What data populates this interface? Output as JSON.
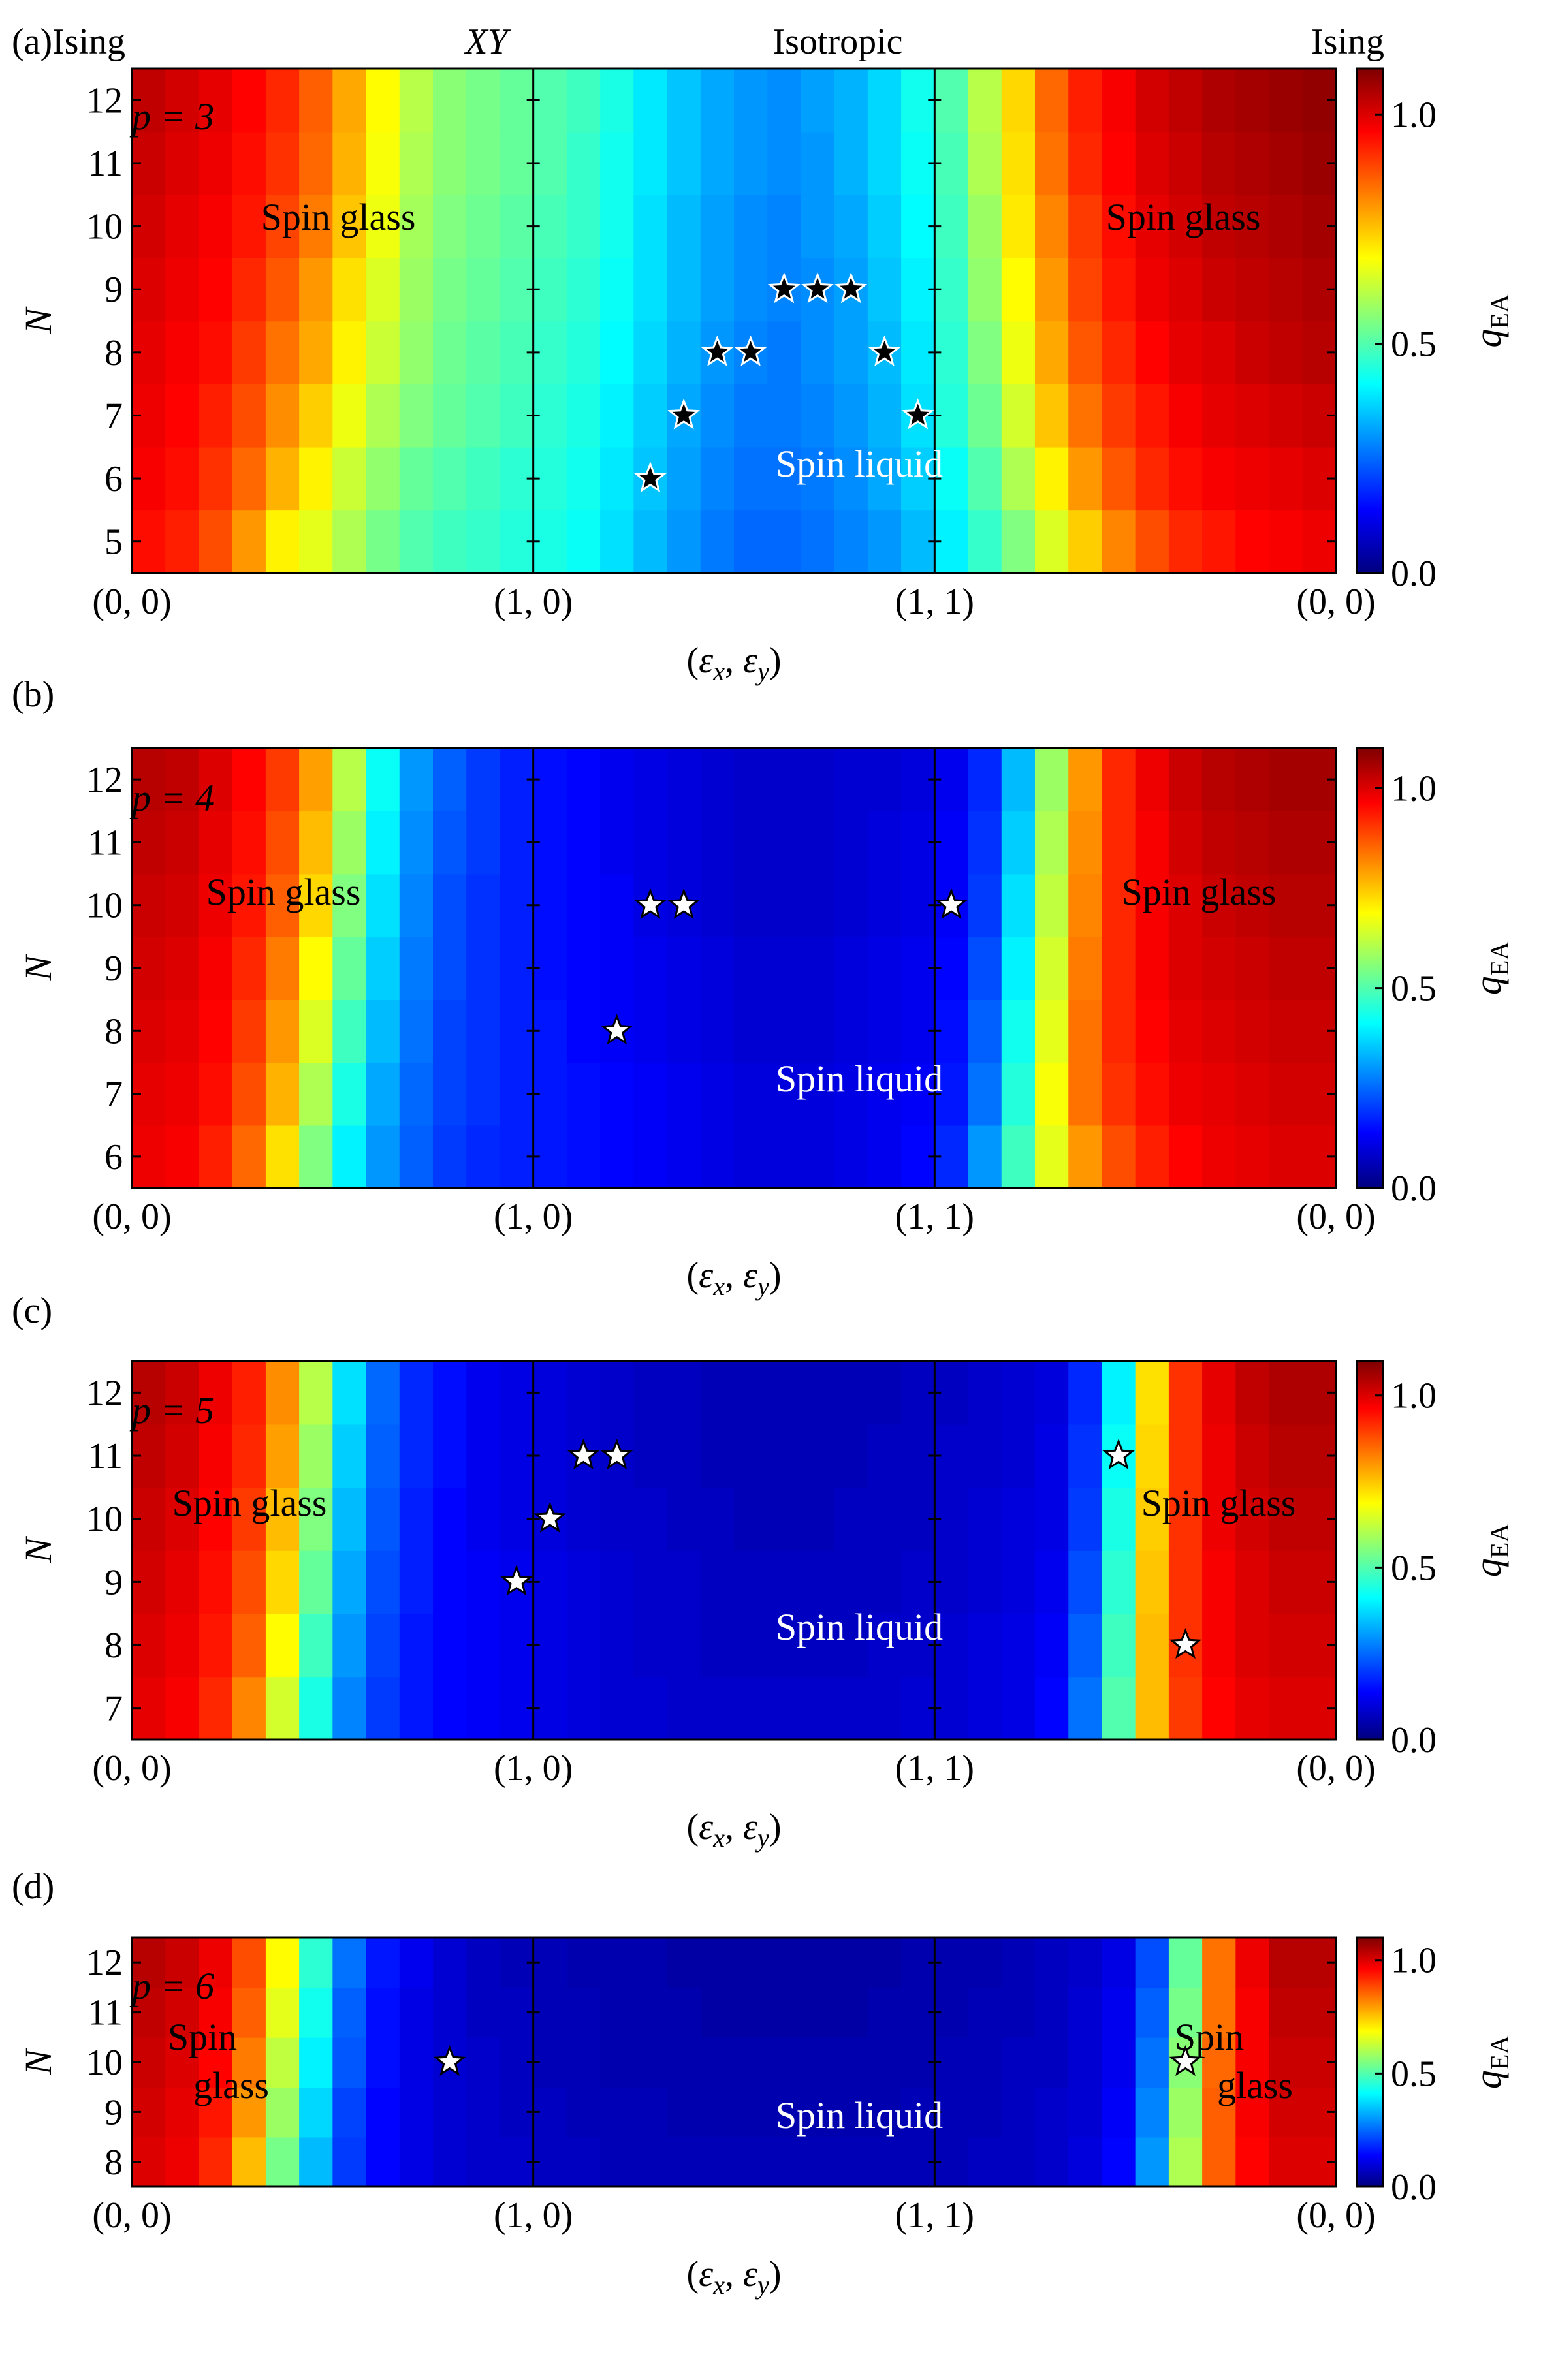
{
  "figure": {
    "colorbar": {
      "label_main": "q",
      "label_sub": "EA",
      "ticks": [
        "0.0",
        "0.5",
        "1.0"
      ],
      "vmin": 0.0,
      "vmax": 1.1
    },
    "x_tick_labels": [
      "(0, 0)",
      "(1, 0)",
      "(1, 1)",
      "(0, 0)"
    ],
    "x_axis_label": {
      "lparen": "(",
      "e1": "ε",
      "s1": "x",
      "comma": ", ",
      "e2": "ε",
      "s2": "y",
      "rparen": ")"
    },
    "y_axis_label": "N",
    "top_labels": {
      "ising_left": "Ising",
      "xy": "XY",
      "isotropic": "Isotropic",
      "ising_right": "Ising"
    },
    "star_color": "#000000"
  },
  "chart_data": [
    {
      "type": "heatmap",
      "panel": "(a)",
      "p_label": "p = 3",
      "xlabel": "(εx, εy)",
      "ylabel": "N",
      "x_path": [
        "(0, 0)",
        "(1, 0)",
        "(1, 1)",
        "(0, 0)"
      ],
      "columns": 36,
      "N": [
        5,
        6,
        7,
        8,
        9,
        10,
        11,
        12
      ],
      "region_labels": [
        "Spin glass",
        "Spin glass",
        "Spin liquid"
      ],
      "values": [
        [
          0.95,
          0.93,
          0.88,
          0.8,
          0.7,
          0.66,
          0.6,
          0.54,
          0.5,
          0.48,
          0.47,
          0.45,
          0.44,
          0.42,
          0.38,
          0.34,
          0.3,
          0.27,
          0.25,
          0.25,
          0.26,
          0.28,
          0.3,
          0.34,
          0.4,
          0.47,
          0.55,
          0.65,
          0.74,
          0.82,
          0.88,
          0.92,
          0.94,
          0.96,
          0.97,
          0.98
        ],
        [
          0.97,
          0.95,
          0.91,
          0.85,
          0.77,
          0.7,
          0.63,
          0.57,
          0.52,
          0.5,
          0.48,
          0.46,
          0.45,
          0.43,
          0.39,
          0.35,
          0.31,
          0.28,
          0.26,
          0.26,
          0.27,
          0.29,
          0.32,
          0.36,
          0.42,
          0.5,
          0.6,
          0.7,
          0.8,
          0.87,
          0.92,
          0.95,
          0.97,
          0.98,
          0.99,
          1.0
        ],
        [
          0.98,
          0.96,
          0.93,
          0.88,
          0.81,
          0.74,
          0.67,
          0.6,
          0.55,
          0.52,
          0.5,
          0.48,
          0.46,
          0.44,
          0.4,
          0.36,
          0.32,
          0.29,
          0.27,
          0.27,
          0.28,
          0.3,
          0.33,
          0.38,
          0.45,
          0.53,
          0.64,
          0.75,
          0.84,
          0.9,
          0.94,
          0.97,
          0.99,
          1.0,
          1.01,
          1.02
        ],
        [
          0.99,
          0.97,
          0.95,
          0.9,
          0.84,
          0.78,
          0.7,
          0.63,
          0.57,
          0.53,
          0.51,
          0.49,
          0.47,
          0.45,
          0.41,
          0.37,
          0.33,
          0.3,
          0.28,
          0.27,
          0.29,
          0.31,
          0.34,
          0.39,
          0.46,
          0.55,
          0.67,
          0.78,
          0.87,
          0.92,
          0.96,
          0.99,
          1.0,
          1.02,
          1.03,
          1.04
        ],
        [
          1.0,
          0.98,
          0.96,
          0.92,
          0.87,
          0.8,
          0.72,
          0.65,
          0.58,
          0.54,
          0.52,
          0.5,
          0.48,
          0.46,
          0.42,
          0.38,
          0.34,
          0.31,
          0.29,
          0.28,
          0.29,
          0.31,
          0.35,
          0.4,
          0.47,
          0.57,
          0.69,
          0.8,
          0.89,
          0.94,
          0.98,
          1.0,
          1.02,
          1.03,
          1.04,
          1.05
        ],
        [
          1.01,
          0.99,
          0.97,
          0.94,
          0.89,
          0.83,
          0.75,
          0.67,
          0.59,
          0.55,
          0.53,
          0.51,
          0.49,
          0.47,
          0.43,
          0.38,
          0.34,
          0.31,
          0.29,
          0.28,
          0.3,
          0.32,
          0.36,
          0.41,
          0.48,
          0.58,
          0.71,
          0.82,
          0.9,
          0.95,
          0.99,
          1.01,
          1.03,
          1.04,
          1.05,
          1.06
        ],
        [
          1.02,
          1.0,
          0.98,
          0.95,
          0.91,
          0.85,
          0.77,
          0.68,
          0.6,
          0.56,
          0.54,
          0.52,
          0.5,
          0.47,
          0.43,
          0.39,
          0.35,
          0.32,
          0.3,
          0.29,
          0.3,
          0.33,
          0.37,
          0.42,
          0.49,
          0.6,
          0.72,
          0.84,
          0.92,
          0.96,
          1.0,
          1.02,
          1.04,
          1.05,
          1.06,
          1.07
        ],
        [
          1.03,
          1.01,
          0.99,
          0.96,
          0.92,
          0.86,
          0.78,
          0.69,
          0.61,
          0.56,
          0.54,
          0.52,
          0.5,
          0.48,
          0.44,
          0.39,
          0.35,
          0.32,
          0.3,
          0.29,
          0.31,
          0.33,
          0.37,
          0.43,
          0.5,
          0.61,
          0.73,
          0.85,
          0.93,
          0.97,
          1.01,
          1.03,
          1.05,
          1.06,
          1.07,
          1.08
        ]
      ],
      "stars": [
        [
          15.5,
          6
        ],
        [
          16.5,
          7
        ],
        [
          17.5,
          8
        ],
        [
          18.5,
          8
        ],
        [
          19.5,
          9
        ],
        [
          20.5,
          9
        ],
        [
          21.5,
          9
        ],
        [
          22.5,
          8
        ],
        [
          23.5,
          7
        ]
      ],
      "star_fill": "black"
    },
    {
      "type": "heatmap",
      "panel": "(b)",
      "p_label": "p = 4",
      "xlabel": "(εx, εy)",
      "ylabel": "N",
      "x_path": [
        "(0, 0)",
        "(1, 0)",
        "(1, 1)",
        "(0, 0)"
      ],
      "columns": 36,
      "N": [
        6,
        7,
        8,
        9,
        10,
        11,
        12
      ],
      "region_labels": [
        "Spin glass",
        "Spin glass",
        "Spin liquid"
      ],
      "values": [
        [
          0.98,
          0.97,
          0.93,
          0.85,
          0.72,
          0.55,
          0.4,
          0.3,
          0.24,
          0.2,
          0.18,
          0.17,
          0.16,
          0.15,
          0.14,
          0.13,
          0.12,
          0.11,
          0.1,
          0.1,
          0.1,
          0.11,
          0.12,
          0.14,
          0.18,
          0.3,
          0.48,
          0.66,
          0.8,
          0.88,
          0.93,
          0.96,
          0.98,
          0.99,
          1.0,
          1.0
        ],
        [
          0.99,
          0.98,
          0.95,
          0.88,
          0.77,
          0.6,
          0.44,
          0.32,
          0.25,
          0.21,
          0.19,
          0.17,
          0.16,
          0.15,
          0.14,
          0.13,
          0.12,
          0.11,
          0.1,
          0.1,
          0.1,
          0.11,
          0.12,
          0.13,
          0.16,
          0.26,
          0.45,
          0.68,
          0.84,
          0.91,
          0.95,
          0.98,
          0.99,
          1.0,
          1.01,
          1.01
        ],
        [
          1.0,
          0.99,
          0.96,
          0.9,
          0.8,
          0.65,
          0.48,
          0.34,
          0.26,
          0.21,
          0.19,
          0.17,
          0.16,
          0.14,
          0.13,
          0.12,
          0.11,
          0.1,
          0.09,
          0.09,
          0.09,
          0.1,
          0.11,
          0.12,
          0.15,
          0.24,
          0.43,
          0.66,
          0.84,
          0.92,
          0.96,
          0.99,
          1.0,
          1.01,
          1.02,
          1.02
        ],
        [
          1.01,
          1.0,
          0.97,
          0.92,
          0.83,
          0.69,
          0.52,
          0.36,
          0.27,
          0.22,
          0.19,
          0.17,
          0.15,
          0.14,
          0.13,
          0.12,
          0.11,
          0.1,
          0.09,
          0.09,
          0.09,
          0.1,
          0.11,
          0.12,
          0.14,
          0.22,
          0.4,
          0.64,
          0.83,
          0.92,
          0.97,
          1.0,
          1.01,
          1.02,
          1.03,
          1.03
        ],
        [
          1.02,
          1.01,
          0.98,
          0.94,
          0.86,
          0.73,
          0.55,
          0.38,
          0.28,
          0.22,
          0.19,
          0.17,
          0.15,
          0.14,
          0.13,
          0.11,
          0.1,
          0.09,
          0.08,
          0.08,
          0.08,
          0.09,
          0.1,
          0.11,
          0.13,
          0.2,
          0.38,
          0.62,
          0.82,
          0.92,
          0.97,
          1.0,
          1.02,
          1.03,
          1.04,
          1.04
        ],
        [
          1.03,
          1.02,
          0.99,
          0.95,
          0.88,
          0.76,
          0.58,
          0.4,
          0.29,
          0.23,
          0.2,
          0.17,
          0.15,
          0.14,
          0.12,
          0.11,
          0.1,
          0.09,
          0.08,
          0.08,
          0.08,
          0.09,
          0.1,
          0.11,
          0.13,
          0.19,
          0.36,
          0.6,
          0.81,
          0.92,
          0.97,
          1.01,
          1.03,
          1.04,
          1.05,
          1.05
        ],
        [
          1.04,
          1.03,
          1.0,
          0.96,
          0.9,
          0.79,
          0.61,
          0.42,
          0.3,
          0.24,
          0.2,
          0.17,
          0.15,
          0.14,
          0.12,
          0.11,
          0.1,
          0.09,
          0.08,
          0.08,
          0.08,
          0.09,
          0.09,
          0.1,
          0.12,
          0.18,
          0.34,
          0.58,
          0.8,
          0.92,
          0.98,
          1.02,
          1.04,
          1.05,
          1.06,
          1.06
        ]
      ],
      "stars": [
        [
          14.5,
          8
        ],
        [
          15.5,
          10
        ],
        [
          16.5,
          10
        ],
        [
          24.5,
          10
        ]
      ],
      "star_fill": "white"
    },
    {
      "type": "heatmap",
      "panel": "(c)",
      "p_label": "p = 5",
      "xlabel": "(εx, εy)",
      "ylabel": "N",
      "x_path": [
        "(0, 0)",
        "(1, 0)",
        "(1, 1)",
        "(0, 0)"
      ],
      "columns": 36,
      "N": [
        7,
        8,
        9,
        10,
        11,
        12
      ],
      "region_labels": [
        "Spin glass",
        "Spin glass",
        "Spin liquid"
      ],
      "values": [
        [
          0.99,
          0.97,
          0.92,
          0.82,
          0.64,
          0.44,
          0.28,
          0.2,
          0.16,
          0.14,
          0.13,
          0.12,
          0.11,
          0.1,
          0.09,
          0.09,
          0.08,
          0.08,
          0.08,
          0.08,
          0.08,
          0.08,
          0.08,
          0.09,
          0.09,
          0.1,
          0.11,
          0.14,
          0.26,
          0.5,
          0.76,
          0.9,
          0.96,
          0.99,
          1.0,
          1.0
        ],
        [
          1.0,
          0.98,
          0.94,
          0.86,
          0.69,
          0.48,
          0.3,
          0.21,
          0.16,
          0.14,
          0.13,
          0.12,
          0.11,
          0.1,
          0.09,
          0.08,
          0.08,
          0.07,
          0.07,
          0.07,
          0.07,
          0.07,
          0.08,
          0.08,
          0.09,
          0.1,
          0.11,
          0.13,
          0.24,
          0.48,
          0.76,
          0.91,
          0.97,
          1.0,
          1.01,
          1.01
        ],
        [
          1.01,
          0.99,
          0.95,
          0.88,
          0.73,
          0.52,
          0.32,
          0.22,
          0.17,
          0.14,
          0.13,
          0.12,
          0.11,
          0.1,
          0.09,
          0.08,
          0.08,
          0.07,
          0.07,
          0.07,
          0.07,
          0.07,
          0.07,
          0.08,
          0.08,
          0.09,
          0.1,
          0.12,
          0.22,
          0.46,
          0.75,
          0.91,
          0.97,
          1.0,
          1.02,
          1.02
        ],
        [
          1.02,
          1.0,
          0.96,
          0.9,
          0.76,
          0.55,
          0.34,
          0.23,
          0.17,
          0.14,
          0.12,
          0.11,
          0.1,
          0.09,
          0.08,
          0.08,
          0.07,
          0.07,
          0.06,
          0.06,
          0.06,
          0.07,
          0.07,
          0.07,
          0.08,
          0.09,
          0.1,
          0.11,
          0.2,
          0.44,
          0.74,
          0.91,
          0.98,
          1.01,
          1.03,
          1.03
        ],
        [
          1.03,
          1.01,
          0.97,
          0.92,
          0.79,
          0.58,
          0.36,
          0.24,
          0.18,
          0.15,
          0.12,
          0.11,
          0.1,
          0.09,
          0.08,
          0.07,
          0.07,
          0.06,
          0.06,
          0.06,
          0.06,
          0.06,
          0.07,
          0.07,
          0.08,
          0.08,
          0.09,
          0.11,
          0.19,
          0.42,
          0.73,
          0.91,
          0.98,
          1.02,
          1.04,
          1.04
        ],
        [
          1.04,
          1.02,
          0.98,
          0.93,
          0.81,
          0.61,
          0.38,
          0.25,
          0.18,
          0.15,
          0.12,
          0.11,
          0.1,
          0.09,
          0.08,
          0.07,
          0.07,
          0.06,
          0.06,
          0.06,
          0.06,
          0.06,
          0.06,
          0.07,
          0.07,
          0.08,
          0.09,
          0.1,
          0.18,
          0.4,
          0.72,
          0.91,
          0.99,
          1.03,
          1.05,
          1.05
        ]
      ],
      "stars": [
        [
          11.5,
          9
        ],
        [
          12.5,
          10
        ],
        [
          13.5,
          11
        ],
        [
          14.5,
          11
        ],
        [
          29.5,
          11
        ],
        [
          31.5,
          8
        ]
      ],
      "star_fill": "white"
    },
    {
      "type": "heatmap",
      "panel": "(d)",
      "p_label": "p = 6",
      "xlabel": "(εx, εy)",
      "ylabel": "N",
      "x_path": [
        "(0, 0)",
        "(1, 0)",
        "(1, 1)",
        "(0, 0)"
      ],
      "columns": 36,
      "N": [
        8,
        9,
        10,
        11,
        12
      ],
      "region_labels": [
        "Spin",
        "glass",
        "Spin",
        "glass",
        "Spin liquid"
      ],
      "values": [
        [
          1.0,
          0.98,
          0.92,
          0.76,
          0.54,
          0.34,
          0.2,
          0.14,
          0.11,
          0.09,
          0.08,
          0.08,
          0.07,
          0.07,
          0.06,
          0.06,
          0.06,
          0.06,
          0.06,
          0.06,
          0.06,
          0.06,
          0.06,
          0.06,
          0.06,
          0.07,
          0.07,
          0.08,
          0.1,
          0.14,
          0.3,
          0.6,
          0.86,
          0.96,
          1.0,
          1.0
        ],
        [
          1.01,
          0.99,
          0.94,
          0.8,
          0.58,
          0.37,
          0.21,
          0.14,
          0.11,
          0.09,
          0.08,
          0.07,
          0.07,
          0.06,
          0.06,
          0.06,
          0.05,
          0.05,
          0.05,
          0.05,
          0.05,
          0.05,
          0.05,
          0.06,
          0.06,
          0.06,
          0.07,
          0.08,
          0.09,
          0.13,
          0.28,
          0.58,
          0.86,
          0.97,
          1.01,
          1.01
        ],
        [
          1.02,
          1.0,
          0.96,
          0.83,
          0.62,
          0.4,
          0.23,
          0.15,
          0.11,
          0.09,
          0.08,
          0.07,
          0.06,
          0.06,
          0.05,
          0.05,
          0.05,
          0.05,
          0.05,
          0.05,
          0.05,
          0.05,
          0.05,
          0.05,
          0.06,
          0.06,
          0.07,
          0.07,
          0.09,
          0.12,
          0.26,
          0.56,
          0.85,
          0.97,
          1.02,
          1.02
        ],
        [
          1.03,
          1.01,
          0.97,
          0.86,
          0.66,
          0.43,
          0.24,
          0.15,
          0.11,
          0.09,
          0.07,
          0.07,
          0.06,
          0.06,
          0.05,
          0.05,
          0.05,
          0.04,
          0.04,
          0.04,
          0.04,
          0.04,
          0.05,
          0.05,
          0.05,
          0.06,
          0.06,
          0.07,
          0.09,
          0.12,
          0.24,
          0.54,
          0.84,
          0.97,
          1.03,
          1.03
        ],
        [
          1.04,
          1.02,
          0.98,
          0.88,
          0.69,
          0.46,
          0.26,
          0.16,
          0.12,
          0.09,
          0.07,
          0.06,
          0.06,
          0.05,
          0.05,
          0.05,
          0.04,
          0.04,
          0.04,
          0.04,
          0.04,
          0.04,
          0.04,
          0.05,
          0.05,
          0.05,
          0.06,
          0.07,
          0.08,
          0.11,
          0.22,
          0.52,
          0.84,
          0.98,
          1.04,
          1.04
        ]
      ],
      "stars": [
        [
          9.5,
          10
        ],
        [
          31.5,
          10
        ]
      ],
      "star_fill": "white"
    }
  ]
}
